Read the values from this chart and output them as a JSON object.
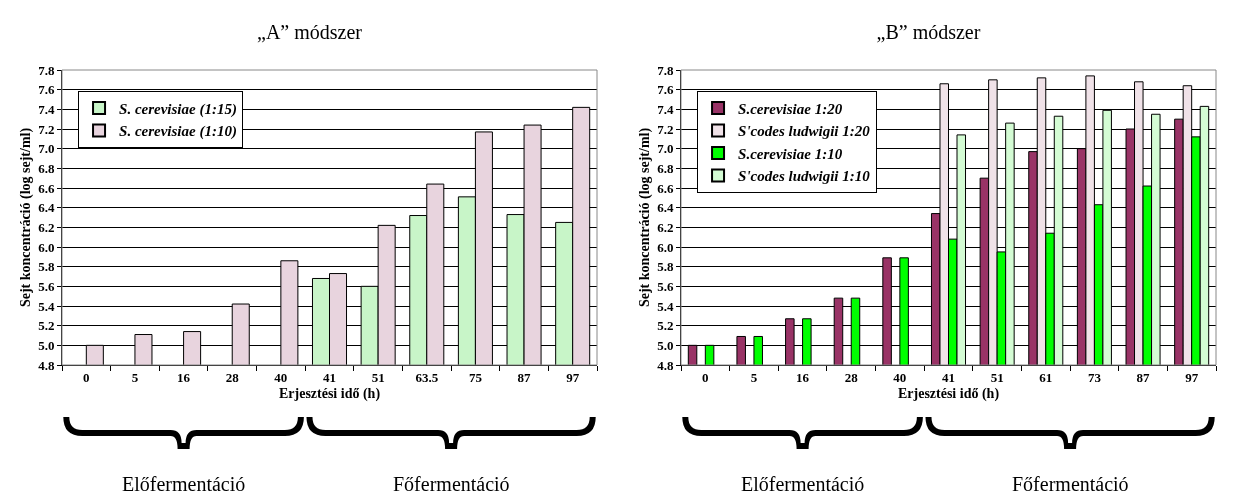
{
  "chart_data": [
    {
      "type": "bar",
      "title": "„A” módszer",
      "xlabel": "Erjesztési idő (h)",
      "ylabel": "Sejt koncentráció (log sejt/ml)",
      "categories": [
        "0",
        "5",
        "16",
        "28",
        "40",
        "41",
        "51",
        "63.5",
        "75",
        "87",
        "97"
      ],
      "series": [
        {
          "name": "S. cerevisiae (1:15)",
          "color": "#c8f5c8",
          "values": [
            null,
            null,
            null,
            null,
            null,
            5.68,
            5.6,
            6.32,
            6.51,
            6.33,
            6.25
          ]
        },
        {
          "name": "S. cerevisiae (1:10)",
          "color": "#e8d4de",
          "values": [
            5.0,
            5.11,
            5.14,
            5.42,
            5.86,
            5.73,
            6.22,
            6.64,
            7.17,
            7.24,
            7.42
          ]
        }
      ],
      "ylim": [
        4.8,
        7.8
      ],
      "yticks": [
        4.8,
        {
          "value": 5,
          "label": "5.0"
        },
        5.2,
        5.4,
        5.6,
        5.8,
        {
          "value": 6,
          "label": "6.0"
        },
        6.2,
        6.4,
        6.6,
        6.8,
        {
          "value": 7,
          "label": "7.0"
        },
        7.2,
        7.4,
        7.6,
        7.8
      ],
      "grid": "y",
      "legend": "top left",
      "annotations": [
        "Előfermentáció",
        "Főfermentáció"
      ]
    },
    {
      "type": "bar",
      "title": "„B” módszer",
      "xlabel": "Erjesztési idő (h)",
      "ylabel": "Sejt koncentráció (log sejt/ml)",
      "categories": [
        "0",
        "5",
        "16",
        "28",
        "40",
        "41",
        "51",
        "61",
        "73",
        "87",
        "97"
      ],
      "series": [
        {
          "name": "S.cerevisiae 1:20",
          "color": "#993366",
          "values": [
            5.0,
            5.09,
            5.27,
            5.48,
            5.89,
            6.34,
            6.7,
            6.97,
            7.0,
            7.2,
            7.3
          ]
        },
        {
          "name": "S'codes ludwigii 1:20",
          "color": "#f0e2e8",
          "values": [
            null,
            null,
            null,
            null,
            null,
            7.66,
            7.7,
            7.72,
            7.74,
            7.68,
            7.64
          ]
        },
        {
          "name": "S.cerevisiae 1:10",
          "color": "#00ff00",
          "values": [
            5.0,
            5.09,
            5.27,
            5.48,
            5.89,
            6.08,
            5.95,
            6.14,
            6.43,
            6.62,
            7.12
          ]
        },
        {
          "name": "S'codes ludwigii 1:10",
          "color": "#d4fcd4",
          "values": [
            null,
            null,
            null,
            null,
            null,
            7.14,
            7.26,
            7.33,
            7.39,
            7.35,
            7.43
          ]
        }
      ],
      "ylim": [
        4.8,
        7.8
      ],
      "yticks": [
        4.8,
        {
          "value": 5,
          "label": "5.0"
        },
        5.2,
        5.4,
        5.6,
        5.8,
        {
          "value": 6,
          "label": "6.0"
        },
        6.2,
        6.4,
        6.6,
        6.8,
        {
          "value": 7,
          "label": "7.0"
        },
        7.2,
        7.4,
        7.6,
        7.8
      ],
      "grid": "y",
      "legend": "top left",
      "annotations": [
        "Előfermentáció",
        "Főfermentáció"
      ]
    }
  ]
}
